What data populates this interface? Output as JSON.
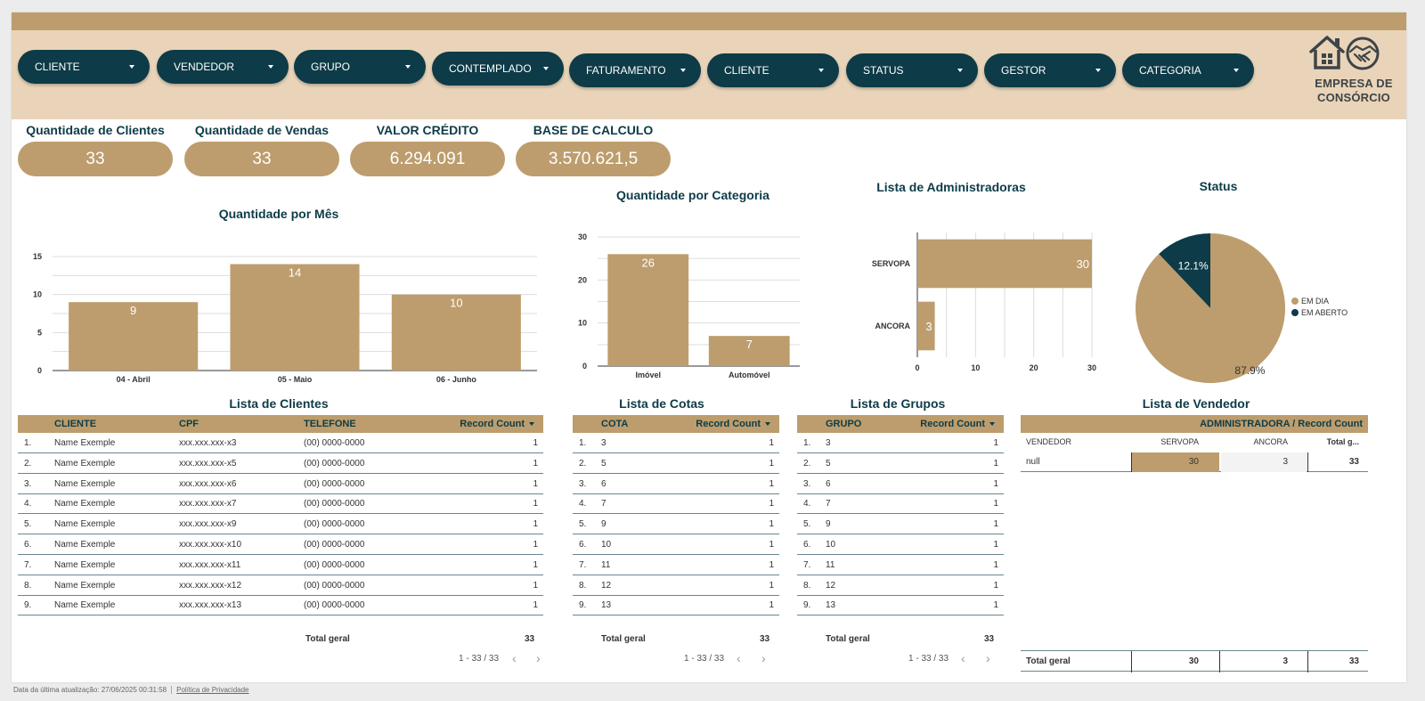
{
  "filters": [
    "CLIENTE",
    "VENDEDOR",
    "GRUPO",
    "CONTEMPLADO",
    "FATURAMENTO",
    "CLIENTE",
    "STATUS",
    "GESTOR",
    "CATEGORIA"
  ],
  "logo": {
    "line1": "EMPRESA DE",
    "line2": "CONSÓRCIO"
  },
  "kpis": [
    {
      "title": "Quantidade de Clientes",
      "value": "33"
    },
    {
      "title": "Quantidade de Vendas",
      "value": "33"
    },
    {
      "title": "VALOR CRÉDITO",
      "value": "6.294.091"
    },
    {
      "title": "BASE DE CALCULO",
      "value": "3.570.621,5"
    }
  ],
  "colors": {
    "tan": "#bd9d6d",
    "navy": "#0d3b47",
    "band": "#e9d4b9"
  },
  "chart_data": [
    {
      "type": "bar",
      "title": "Quantidade por Mês",
      "categories": [
        "04 - Abril",
        "05 - Maio",
        "06 - Junho"
      ],
      "values": [
        9,
        14,
        10
      ],
      "ylim": [
        0,
        15
      ],
      "yticks": [
        0,
        5,
        10,
        15
      ],
      "grid": true
    },
    {
      "type": "bar",
      "title": "Quantidade por Categoria",
      "categories": [
        "Imóvel",
        "Automóvel"
      ],
      "values": [
        26,
        7
      ],
      "ylim": [
        0,
        30
      ],
      "yticks": [
        0,
        10,
        20,
        30
      ],
      "grid": true
    },
    {
      "type": "bar",
      "orientation": "horizontal",
      "title": "Lista de Administradoras",
      "categories": [
        "SERVOPA",
        "ANCORA"
      ],
      "values": [
        30,
        3
      ],
      "xlim": [
        0,
        30
      ],
      "xticks": [
        0,
        10,
        20,
        30
      ],
      "grid": true
    },
    {
      "type": "pie",
      "title": "Status",
      "labels": [
        "EM DIA",
        "EM ABERTO"
      ],
      "values": [
        87.9,
        12.1
      ],
      "value_labels": [
        "87.9%",
        "12.1%"
      ],
      "colors": [
        "#bd9d6d",
        "#0d3b47"
      ],
      "legend": "right"
    }
  ],
  "clientes": {
    "title": "Lista de Clientes",
    "columns": [
      "CLIENTE",
      "CPF",
      "TELEFONE",
      "Record Count"
    ],
    "rows": [
      [
        "1.",
        "Name Exemple",
        "xxx.xxx.xxx-x3",
        "(00) 0000-0000",
        "1"
      ],
      [
        "2.",
        "Name Exemple",
        "xxx.xxx.xxx-x5",
        "(00) 0000-0000",
        "1"
      ],
      [
        "3.",
        "Name Exemple",
        "xxx.xxx.xxx-x6",
        "(00) 0000-0000",
        "1"
      ],
      [
        "4.",
        "Name Exemple",
        "xxx.xxx.xxx-x7",
        "(00) 0000-0000",
        "1"
      ],
      [
        "5.",
        "Name Exemple",
        "xxx.xxx.xxx-x9",
        "(00) 0000-0000",
        "1"
      ],
      [
        "6.",
        "Name Exemple",
        "xxx.xxx.xxx-x10",
        "(00) 0000-0000",
        "1"
      ],
      [
        "7.",
        "Name Exemple",
        "xxx.xxx.xxx-x11",
        "(00) 0000-0000",
        "1"
      ],
      [
        "8.",
        "Name Exemple",
        "xxx.xxx.xxx-x12",
        "(00) 0000-0000",
        "1"
      ],
      [
        "9.",
        "Name Exemple",
        "xxx.xxx.xxx-x13",
        "(00) 0000-0000",
        "1"
      ]
    ],
    "total_label": "Total geral",
    "total": "33",
    "pager": "1 - 33 / 33"
  },
  "cotas": {
    "title": "Lista de Cotas",
    "columns": [
      "COTA",
      "Record Count"
    ],
    "rows": [
      [
        "1.",
        "3",
        "1"
      ],
      [
        "2.",
        "5",
        "1"
      ],
      [
        "3.",
        "6",
        "1"
      ],
      [
        "4.",
        "7",
        "1"
      ],
      [
        "5.",
        "9",
        "1"
      ],
      [
        "6.",
        "10",
        "1"
      ],
      [
        "7.",
        "11",
        "1"
      ],
      [
        "8.",
        "12",
        "1"
      ],
      [
        "9.",
        "13",
        "1"
      ]
    ],
    "total_label": "Total geral",
    "total": "33",
    "pager": "1 - 33 / 33"
  },
  "grupos": {
    "title": "Lista de Grupos",
    "columns": [
      "GRUPO",
      "Record Count"
    ],
    "rows": [
      [
        "1.",
        "3",
        "1"
      ],
      [
        "2.",
        "5",
        "1"
      ],
      [
        "3.",
        "6",
        "1"
      ],
      [
        "4.",
        "7",
        "1"
      ],
      [
        "5.",
        "9",
        "1"
      ],
      [
        "6.",
        "10",
        "1"
      ],
      [
        "7.",
        "11",
        "1"
      ],
      [
        "8.",
        "12",
        "1"
      ],
      [
        "9.",
        "13",
        "1"
      ]
    ],
    "total_label": "Total geral",
    "total": "33",
    "pager": "1 - 33 / 33"
  },
  "vendedor": {
    "title": "Lista de Vendedor",
    "header": "ADMINISTRADORA / Record Count",
    "columns": [
      "VENDEDOR",
      "SERVOPA",
      "ANCORA",
      "Total g..."
    ],
    "row": [
      "null",
      "30",
      "3",
      "33"
    ],
    "total": [
      "Total geral",
      "30",
      "3",
      "33"
    ]
  },
  "footer": {
    "updated": "Data da última atualização: 27/06/2025 00:31:58",
    "privacy": "Política de Privacidade"
  }
}
